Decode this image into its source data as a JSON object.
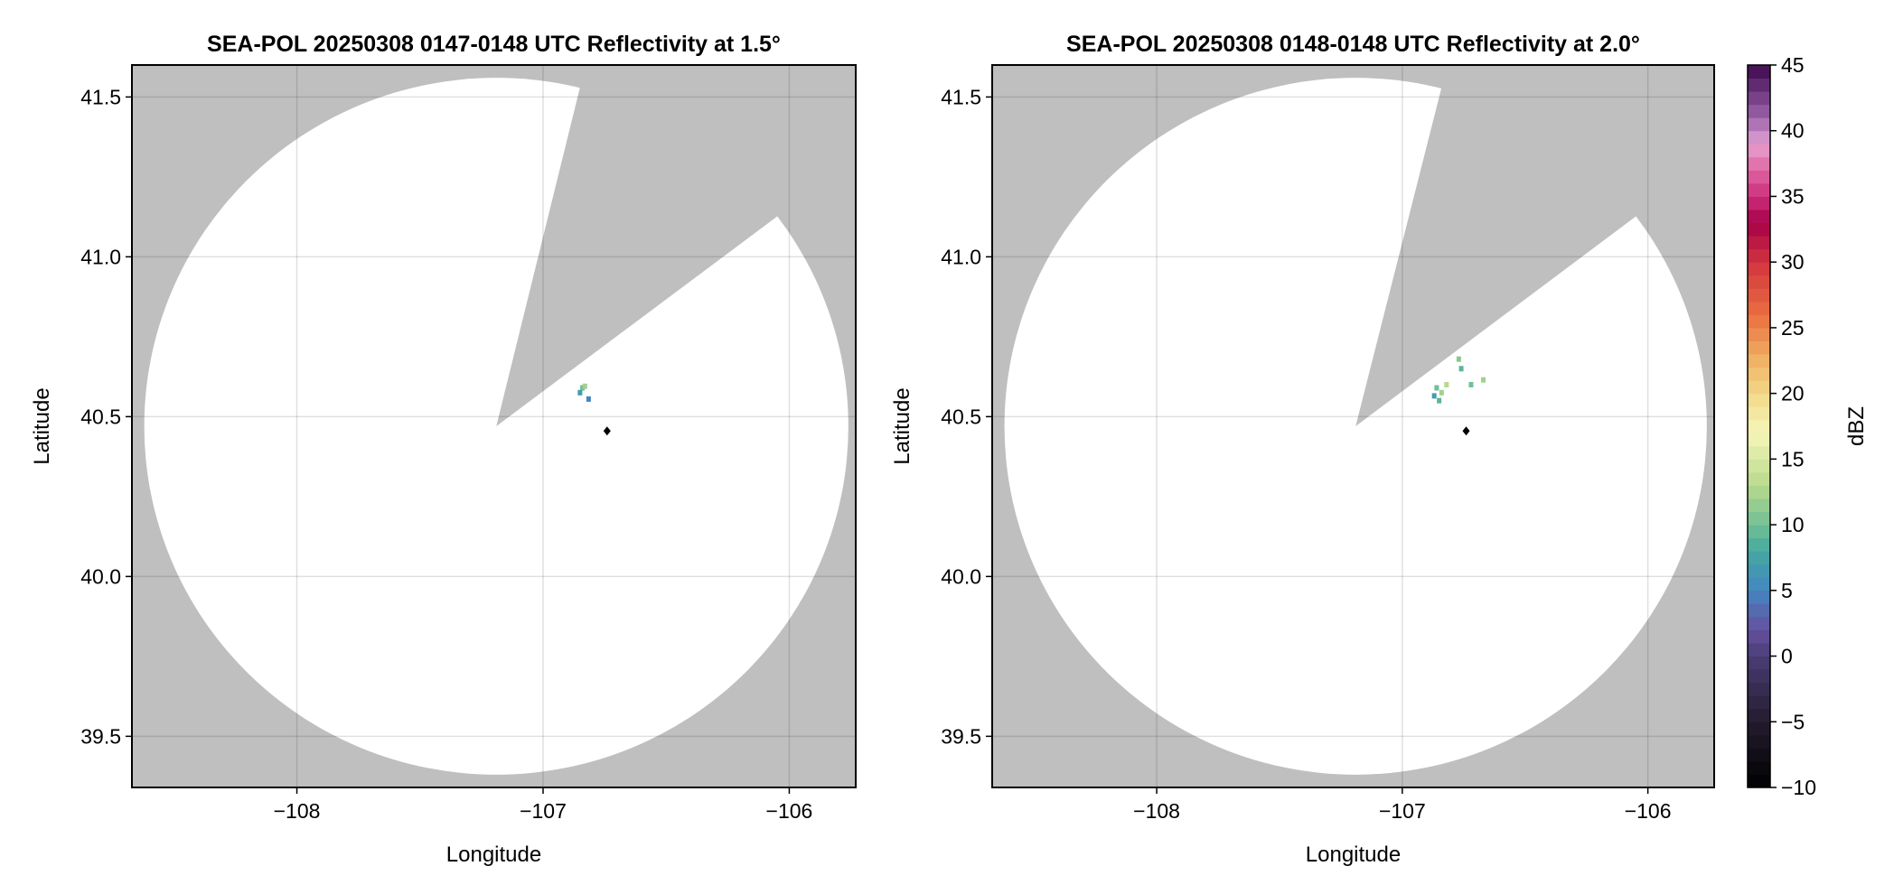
{
  "chart_data": [
    {
      "type": "heatmap",
      "title": "SEA-POL 20250308 0147-0148 UTC Reflectivity at 1.5°",
      "xlabel": "Longitude",
      "ylabel": "Latitude",
      "xlim": [
        -108.67,
        -105.73
      ],
      "ylim": [
        39.34,
        41.6
      ],
      "xticks": [
        -108,
        -107,
        -106
      ],
      "xtick_labels": [
        "−108",
        "−107",
        "−106"
      ],
      "yticks": [
        39.5,
        40.0,
        40.5,
        41.0,
        41.5
      ],
      "ytick_labels": [
        "39.5",
        "40.0",
        "40.5",
        "41.0",
        "41.5"
      ],
      "grid": true,
      "radar_center": [
        -107.19,
        40.47
      ],
      "range_radius_deg": {
        "lon": 1.43,
        "lat": 1.09
      },
      "blocked_sector_edges": [
        [
          -106.85,
          41.53
        ],
        [
          -106.06,
          41.12
        ]
      ],
      "no_data_color": "#bfbfbf",
      "marker": {
        "lon": -106.74,
        "lat": 40.455,
        "color": "#000000"
      },
      "echoes": [
        {
          "lon": -106.84,
          "lat": 40.59,
          "dbz": 10
        },
        {
          "lon": -106.85,
          "lat": 40.575,
          "dbz": 7
        },
        {
          "lon": -106.83,
          "lat": 40.595,
          "dbz": 12
        },
        {
          "lon": -106.815,
          "lat": 40.555,
          "dbz": 5
        }
      ]
    },
    {
      "type": "heatmap",
      "title": "SEA-POL 20250308 0148-0148 UTC Reflectivity at 2.0°",
      "xlabel": "Longitude",
      "ylabel": "Latitude",
      "xlim": [
        -108.67,
        -105.73
      ],
      "ylim": [
        39.34,
        41.6
      ],
      "xticks": [
        -108,
        -107,
        -106
      ],
      "xtick_labels": [
        "−108",
        "−107",
        "−106"
      ],
      "yticks": [
        39.5,
        40.0,
        40.5,
        41.0,
        41.5
      ],
      "ytick_labels": [
        "39.5",
        "40.0",
        "40.5",
        "41.0",
        "41.5"
      ],
      "grid": true,
      "radar_center": [
        -107.19,
        40.47
      ],
      "range_radius_deg": {
        "lon": 1.43,
        "lat": 1.09
      },
      "blocked_sector_edges": [
        [
          -106.84,
          41.53
        ],
        [
          -106.06,
          41.12
        ]
      ],
      "no_data_color": "#bfbfbf",
      "marker": {
        "lon": -106.74,
        "lat": 40.455,
        "color": "#000000"
      },
      "echoes": [
        {
          "lon": -106.86,
          "lat": 40.59,
          "dbz": 10
        },
        {
          "lon": -106.84,
          "lat": 40.575,
          "dbz": 12
        },
        {
          "lon": -106.87,
          "lat": 40.565,
          "dbz": 7
        },
        {
          "lon": -106.85,
          "lat": 40.55,
          "dbz": 9
        },
        {
          "lon": -106.76,
          "lat": 40.65,
          "dbz": 9
        },
        {
          "lon": -106.77,
          "lat": 40.68,
          "dbz": 11
        },
        {
          "lon": -106.72,
          "lat": 40.6,
          "dbz": 10
        },
        {
          "lon": -106.67,
          "lat": 40.615,
          "dbz": 12
        },
        {
          "lon": -106.82,
          "lat": 40.6,
          "dbz": 13
        }
      ]
    }
  ],
  "colorbar": {
    "label": "dBZ",
    "range": [
      -10,
      45
    ],
    "step": 1,
    "ticks": [
      -10,
      -5,
      0,
      5,
      10,
      15,
      20,
      25,
      30,
      35,
      40,
      45
    ],
    "tick_labels": [
      "−10",
      "−5",
      "0",
      "5",
      "10",
      "15",
      "20",
      "25",
      "30",
      "35",
      "40",
      "45"
    ],
    "color_stops": [
      [
        -10,
        "#000000"
      ],
      [
        -5,
        "#231c2e"
      ],
      [
        0,
        "#4a3d76"
      ],
      [
        2,
        "#6650a0"
      ],
      [
        5,
        "#4386c0"
      ],
      [
        8,
        "#45a8a0"
      ],
      [
        10,
        "#72bf94"
      ],
      [
        13,
        "#b8d98c"
      ],
      [
        17,
        "#f6f6b8"
      ],
      [
        20,
        "#f2d889"
      ],
      [
        23,
        "#efaa5f"
      ],
      [
        26,
        "#ea6e40"
      ],
      [
        30,
        "#d2343f"
      ],
      [
        33,
        "#a50047"
      ],
      [
        35,
        "#ce2e7e"
      ],
      [
        38,
        "#e581b6"
      ],
      [
        39,
        "#e4a2d4"
      ],
      [
        41,
        "#9c64aa"
      ],
      [
        45,
        "#3e0850"
      ]
    ]
  }
}
